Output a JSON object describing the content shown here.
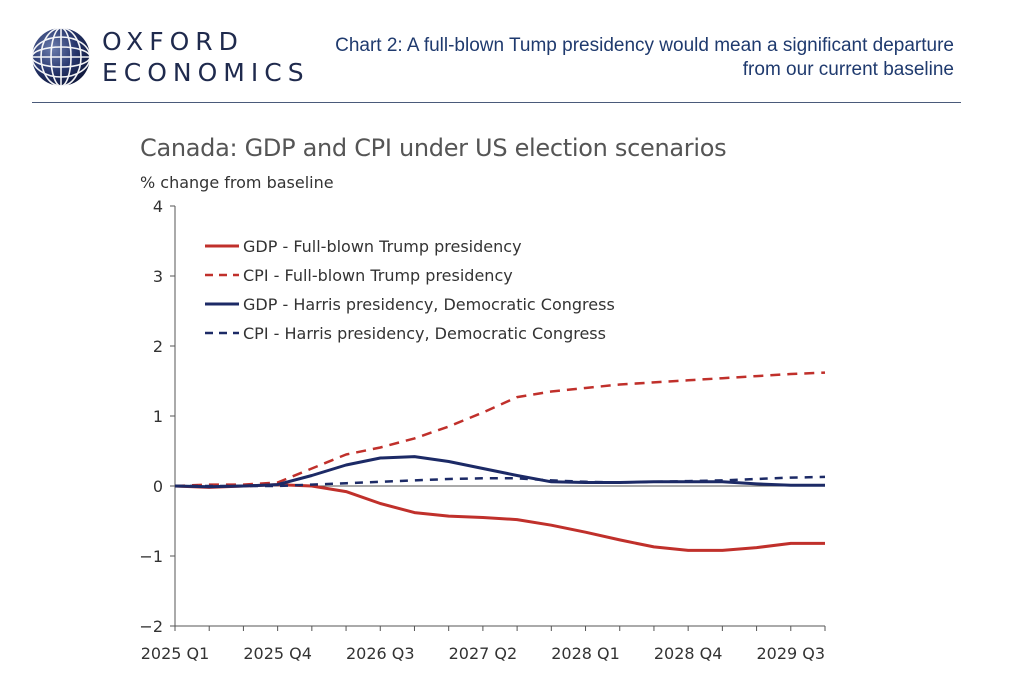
{
  "header": {
    "logo_line1": "OXFORD",
    "logo_line2": "ECONOMICS",
    "title": "Chart 2: A full-blown Tump presidency would mean a significant departure from our current baseline"
  },
  "colors": {
    "trump": "#c0302b",
    "harris": "#1c2a66",
    "axis": "#555555",
    "header_text": "#1f3a6e"
  },
  "icons": {
    "logo": "globe-icon"
  },
  "chart_data": {
    "type": "line",
    "title": "Canada: GDP and CPI under US election scenarios",
    "ylabel": "% change from baseline",
    "xlabel": "",
    "ylim": [
      -2,
      4
    ],
    "yticks": [
      -2,
      -1,
      0,
      1,
      2,
      3,
      4
    ],
    "grid": false,
    "legend_position": "top-left",
    "x": [
      "2025 Q1",
      "2025 Q2",
      "2025 Q3",
      "2025 Q4",
      "2026 Q1",
      "2026 Q2",
      "2026 Q3",
      "2026 Q4",
      "2027 Q1",
      "2027 Q2",
      "2027 Q3",
      "2027 Q4",
      "2028 Q1",
      "2028 Q2",
      "2028 Q3",
      "2028 Q4",
      "2029 Q1",
      "2029 Q2",
      "2029 Q3",
      "2029 Q4"
    ],
    "xtick_labels": [
      "2025 Q1",
      "2025 Q4",
      "2026 Q3",
      "2027 Q2",
      "2028 Q1",
      "2028 Q4",
      "2029 Q3"
    ],
    "series": [
      {
        "name": "GDP - Full-blown Trump presidency",
        "color": "#c0302b",
        "dash": "solid",
        "values": [
          0,
          -0.02,
          0.0,
          0.02,
          0.0,
          -0.08,
          -0.25,
          -0.38,
          -0.43,
          -0.45,
          -0.48,
          -0.56,
          -0.66,
          -0.77,
          -0.87,
          -0.92,
          -0.92,
          -0.88,
          -0.82,
          -0.82
        ]
      },
      {
        "name": "CPI - Full-blown Trump presidency",
        "color": "#c0302b",
        "dash": "dashed",
        "values": [
          0,
          0.02,
          0.02,
          0.05,
          0.25,
          0.45,
          0.55,
          0.68,
          0.85,
          1.05,
          1.27,
          1.35,
          1.4,
          1.45,
          1.48,
          1.51,
          1.54,
          1.57,
          1.6,
          1.62
        ]
      },
      {
        "name": "GDP - Harris presidency, Democratic Congress",
        "color": "#1c2a66",
        "dash": "solid",
        "values": [
          0,
          -0.01,
          0.0,
          0.02,
          0.15,
          0.3,
          0.4,
          0.42,
          0.35,
          0.25,
          0.15,
          0.06,
          0.05,
          0.05,
          0.06,
          0.06,
          0.06,
          0.03,
          0.01,
          0.01
        ]
      },
      {
        "name": "CPI - Harris presidency, Democratic Congress",
        "color": "#1c2a66",
        "dash": "dashed",
        "values": [
          0,
          0.0,
          0.0,
          0.0,
          0.02,
          0.04,
          0.06,
          0.08,
          0.1,
          0.11,
          0.11,
          0.08,
          0.06,
          0.05,
          0.06,
          0.07,
          0.08,
          0.1,
          0.12,
          0.13
        ]
      }
    ]
  }
}
